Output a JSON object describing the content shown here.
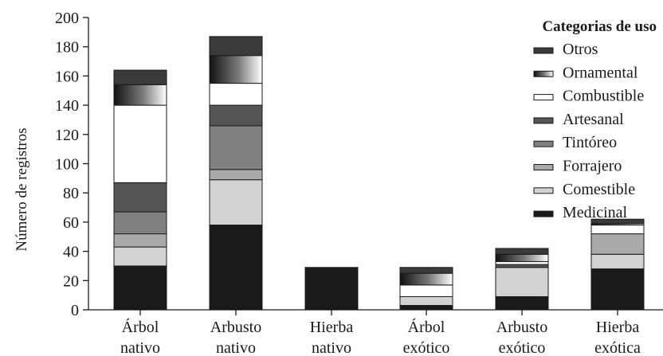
{
  "chart_data": {
    "type": "bar",
    "stacked": true,
    "categories": [
      [
        "Árbol",
        "nativo"
      ],
      [
        "Arbusto",
        "nativo"
      ],
      [
        "Hierba",
        "nativo"
      ],
      [
        "Árbol",
        "exótico"
      ],
      [
        "Arbusto",
        "exótico"
      ],
      [
        "Hierba",
        "exótica"
      ]
    ],
    "ylabel": "Número de registros",
    "xlabel": "",
    "ylim": [
      0,
      200
    ],
    "yticks": [
      0,
      20,
      40,
      60,
      80,
      100,
      120,
      140,
      160,
      180,
      200
    ],
    "grid": false,
    "legend": {
      "title": "Categorias de uso",
      "placement": "top-right"
    },
    "series": [
      {
        "name": "Medicinal",
        "color": "#1a1a1a",
        "values": [
          30,
          58,
          29,
          3,
          9,
          28
        ]
      },
      {
        "name": "Comestible",
        "color": "#d2d2d2",
        "values": [
          13,
          31,
          0,
          6,
          20,
          10
        ]
      },
      {
        "name": "Forrajero",
        "color": "#aaaaaa",
        "values": [
          9,
          7,
          0,
          0,
          0,
          14
        ]
      },
      {
        "name": "Tintóreo",
        "color": "#808080",
        "values": [
          15,
          30,
          0,
          0,
          0,
          0
        ]
      },
      {
        "name": "Artesanal",
        "color": "#555555",
        "values": [
          20,
          14,
          0,
          0,
          2,
          0
        ]
      },
      {
        "name": "Combustible",
        "color": "#ffffff",
        "values": [
          53,
          15,
          0,
          8,
          2,
          6
        ]
      },
      {
        "name": "Ornamental",
        "color": "gradient",
        "values": [
          14,
          19,
          0,
          8,
          5,
          1
        ]
      },
      {
        "name": "Otros",
        "color": "#3a3a3a",
        "values": [
          10,
          13,
          0,
          4,
          4,
          3
        ]
      }
    ]
  }
}
